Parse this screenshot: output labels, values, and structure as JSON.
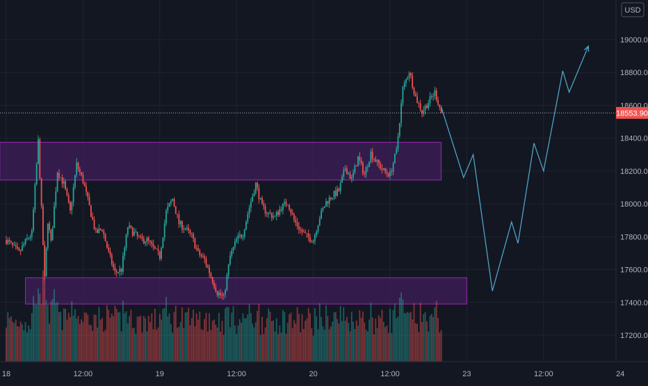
{
  "currency_label": "USD",
  "last_price_label": "18553.90",
  "colors": {
    "background": "#131722",
    "grid": "#1f2330",
    "bull": "#26a69a",
    "bear": "#ef5350",
    "zone_fill": "#3f1f5a",
    "zone_stroke": "#9c27b0",
    "projection": "#4fa3c7",
    "price_badge": "#ef5350"
  },
  "chart_data": {
    "type": "candlestick",
    "title": "",
    "xlabel": "",
    "ylabel": "",
    "ylim": [
      17050,
      19050
    ],
    "yticks": [
      17200,
      17400,
      17600,
      17800,
      18000,
      18200,
      18400,
      18600,
      18800,
      19000
    ],
    "ytick_labels": [
      "17200.00",
      "17400.00",
      "17600.00",
      "17800.00",
      "18000.00",
      "18200.00",
      "18400.00",
      "18600.00",
      "18800.00",
      "19000.00"
    ],
    "xticks": [
      {
        "label": "18",
        "hour": 0
      },
      {
        "label": "12:00",
        "hour": 12
      },
      {
        "label": "19",
        "hour": 24
      },
      {
        "label": "12:00",
        "hour": 36
      },
      {
        "label": "20",
        "hour": 48
      },
      {
        "label": "12:00",
        "hour": 60
      },
      {
        "label": "23",
        "hour": 72
      },
      {
        "label": "12:00",
        "hour": 84
      },
      {
        "label": "24",
        "hour": 96
      }
    ],
    "last_price": 18553.9,
    "price_anchors": [
      [
        0,
        17780
      ],
      [
        2,
        17700
      ],
      [
        3,
        17770
      ],
      [
        4,
        17820
      ],
      [
        5,
        18380
      ],
      [
        5.4,
        18050
      ],
      [
        6,
        17540
      ],
      [
        6.5,
        17900
      ],
      [
        7,
        17760
      ],
      [
        8,
        18200
      ],
      [
        9,
        18120
      ],
      [
        10,
        17950
      ],
      [
        11,
        18240
      ],
      [
        12,
        18140
      ],
      [
        13,
        17980
      ],
      [
        14,
        17820
      ],
      [
        15,
        17850
      ],
      [
        16,
        17700
      ],
      [
        17,
        17580
      ],
      [
        18,
        17600
      ],
      [
        19,
        17860
      ],
      [
        20,
        17820
      ],
      [
        21,
        17780
      ],
      [
        22,
        17780
      ],
      [
        24,
        17680
      ],
      [
        25,
        17950
      ],
      [
        26,
        18030
      ],
      [
        27,
        17880
      ],
      [
        28,
        17850
      ],
      [
        29,
        17800
      ],
      [
        30,
        17700
      ],
      [
        31,
        17660
      ],
      [
        32,
        17560
      ],
      [
        33,
        17460
      ],
      [
        34,
        17430
      ],
      [
        35,
        17680
      ],
      [
        36,
        17780
      ],
      [
        37,
        17820
      ],
      [
        38,
        17980
      ],
      [
        39,
        18120
      ],
      [
        40,
        17980
      ],
      [
        41,
        17940
      ],
      [
        42,
        17920
      ],
      [
        43,
        17980
      ],
      [
        44,
        18010
      ],
      [
        45,
        17900
      ],
      [
        46,
        17840
      ],
      [
        47,
        17800
      ],
      [
        48,
        17780
      ],
      [
        49,
        17920
      ],
      [
        50,
        18010
      ],
      [
        51,
        18050
      ],
      [
        52,
        18080
      ],
      [
        53,
        18220
      ],
      [
        54,
        18150
      ],
      [
        55,
        18280
      ],
      [
        56,
        18180
      ],
      [
        57,
        18310
      ],
      [
        58,
        18250
      ],
      [
        59,
        18200
      ],
      [
        60,
        18180
      ],
      [
        61,
        18320
      ],
      [
        62,
        18700
      ],
      [
        63,
        18810
      ],
      [
        64,
        18650
      ],
      [
        65,
        18560
      ],
      [
        66,
        18620
      ],
      [
        67,
        18680
      ],
      [
        68,
        18560
      ]
    ],
    "zones": [
      {
        "name": "upper",
        "x0": -1,
        "x1": 68,
        "y0": 18145,
        "y1": 18375
      },
      {
        "name": "lower",
        "x0": 3,
        "x1": 72,
        "y0": 17390,
        "y1": 17550
      }
    ],
    "projection": [
      [
        68,
        18590
      ],
      [
        71.5,
        18160
      ],
      [
        73,
        18300
      ],
      [
        76,
        17470
      ],
      [
        79,
        17890
      ],
      [
        80,
        17760
      ],
      [
        82.5,
        18370
      ],
      [
        84,
        18200
      ],
      [
        87,
        18810
      ],
      [
        88,
        18680
      ],
      [
        91,
        18960
      ]
    ],
    "volume_note": "volume histogram at bottom, bars colored by candle direction"
  }
}
